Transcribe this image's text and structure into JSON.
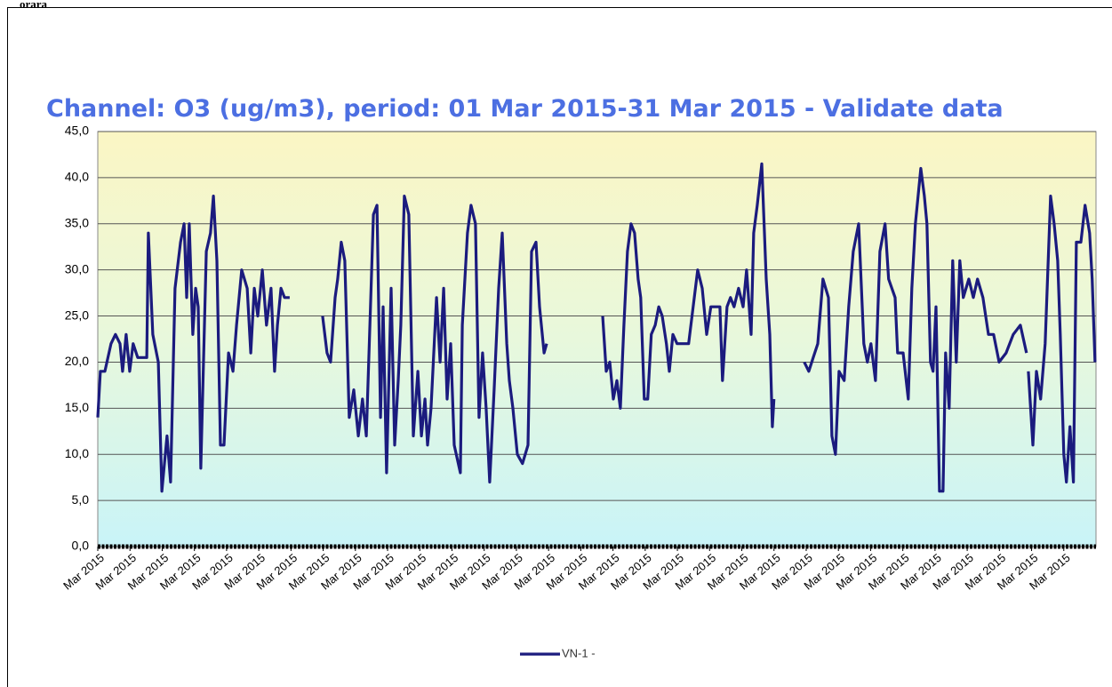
{
  "header": {
    "title": "orara"
  },
  "chart_data": {
    "type": "line",
    "title": "Channel: O3 (ug/m3), period: 01 Mar 2015-31 Mar 2015 - Validate data",
    "x": [
      0,
      0.08,
      0.22,
      0.41,
      0.55,
      0.69,
      0.77,
      0.88,
      0.99,
      1.1,
      1.24,
      1.52,
      1.57,
      1.71,
      1.88,
      1.99,
      2.15,
      2.26,
      2.4,
      2.57,
      2.68,
      2.76,
      2.84,
      2.95,
      3.04,
      3.12,
      3.2,
      3.37,
      3.5,
      3.59,
      3.7,
      3.81,
      3.92,
      4.06,
      4.2,
      4.31,
      4.47,
      4.64,
      4.75,
      4.86,
      4.97,
      5.11,
      5.24,
      5.38,
      5.49,
      5.58,
      5.69,
      5.8,
      5.96,
      6.5,
      6.98,
      7.12,
      7.23,
      7.37,
      7.45,
      7.56,
      7.67,
      7.81,
      7.95,
      8.09,
      8.22,
      8.34,
      8.47,
      8.56,
      8.67,
      8.78,
      8.86,
      8.97,
      9.11,
      9.22,
      9.33,
      9.41,
      9.52,
      9.66,
      9.8,
      9.94,
      10.05,
      10.16,
      10.24,
      10.35,
      10.52,
      10.63,
      10.74,
      10.85,
      10.96,
      11.07,
      11.26,
      11.32,
      11.48,
      11.59,
      11.73,
      11.84,
      11.95,
      12.06,
      12.17,
      12.31,
      12.45,
      12.56,
      12.7,
      12.78,
      12.89,
      13.03,
      13.19,
      13.36,
      13.47,
      13.61,
      13.72,
      13.86,
      13.94,
      15,
      15.68,
      15.79,
      15.9,
      16.01,
      16.12,
      16.23,
      16.34,
      16.45,
      16.56,
      16.67,
      16.78,
      16.86,
      16.97,
      17.08,
      17.19,
      17.31,
      17.42,
      17.53,
      17.66,
      17.75,
      17.86,
      17.99,
      18.35,
      18.49,
      18.63,
      18.77,
      18.91,
      19.04,
      19.32,
      19.4,
      19.54,
      19.65,
      19.76,
      19.9,
      20.04,
      20.15,
      20.29,
      20.37,
      20.48,
      20.62,
      20.76,
      20.87,
      20.95,
      21.0,
      21.8,
      21.94,
      22.08,
      22.22,
      22.36,
      22.52,
      22.69,
      22.8,
      22.91,
      23.02,
      23.18,
      23.32,
      23.46,
      23.63,
      23.79,
      23.9,
      24.01,
      24.15,
      24.29,
      24.45,
      24.56,
      24.76,
      24.84,
      25.01,
      25.17,
      25.28,
      25.39,
      25.56,
      25.67,
      25.75,
      25.86,
      25.94,
      26.03,
      26.14,
      26.25,
      26.33,
      26.44,
      26.55,
      26.66,
      26.77,
      26.88,
      27.05,
      27.19,
      27.32,
      27.49,
      27.66,
      27.82,
      27.99,
      28.21,
      28.43,
      28.65,
      28.84,
      28.87,
      28.9,
      29.04,
      29.15,
      29.28,
      29.42,
      29.59,
      29.7,
      29.81,
      29.89,
      30.0,
      30.08,
      30.19,
      30.3,
      30.39,
      30.53,
      30.66,
      30.8,
      30.88,
      30.97
    ],
    "series": [
      {
        "name": "VN-1 -",
        "color": "#1b1b7e",
        "values": [
          14,
          19,
          19,
          22,
          23,
          22,
          19,
          23,
          19,
          22,
          20.5,
          20.5,
          34,
          23,
          20,
          6,
          12,
          7,
          28,
          33,
          35,
          27,
          35,
          23,
          28,
          26,
          8.5,
          32,
          34,
          38,
          31,
          11,
          11,
          21,
          19,
          24,
          30,
          28,
          21,
          28,
          25,
          30,
          24,
          28,
          19,
          24,
          28,
          27,
          27,
          null,
          25,
          21,
          20,
          27,
          29,
          33,
          31,
          14,
          17,
          12,
          16,
          12,
          26,
          36,
          37,
          14,
          26,
          8,
          28,
          11,
          18,
          24,
          38,
          36,
          12,
          19,
          12,
          16,
          11,
          15,
          27,
          20,
          28,
          16,
          22,
          11,
          8,
          24,
          34,
          37,
          35,
          14,
          21,
          15,
          7,
          17,
          28,
          34,
          22,
          18,
          15,
          10,
          9,
          11,
          32,
          33,
          26,
          21,
          22,
          null,
          25,
          19,
          20,
          16,
          18,
          15,
          24,
          32,
          35,
          34,
          29,
          27,
          16,
          16,
          23,
          24,
          26,
          25,
          22,
          19,
          23,
          22,
          22,
          26,
          30,
          28,
          23,
          26,
          26,
          18,
          26,
          27,
          26,
          28,
          26,
          30,
          23,
          34,
          37,
          41.5,
          29,
          23,
          13,
          16,
          null,
          20,
          19,
          20.5,
          22,
          29,
          27,
          12,
          10,
          19,
          18,
          26,
          32,
          35,
          22,
          20,
          22,
          18,
          32,
          35,
          29,
          27,
          21,
          21,
          16,
          28,
          35,
          41,
          38,
          35,
          20,
          19,
          26,
          6,
          6,
          21,
          15,
          31,
          20,
          31,
          27,
          29,
          27,
          29,
          27,
          23,
          23,
          20,
          21,
          23,
          24,
          21,
          null,
          19,
          11,
          19,
          16,
          22,
          38,
          35,
          31,
          23,
          10,
          7,
          13,
          7,
          33,
          33,
          37,
          34,
          29,
          20
        ]
      }
    ],
    "xlim": [
      0,
      31
    ],
    "xticks": [
      {
        "value": 0,
        "label": "Mar 2015"
      },
      {
        "value": 1,
        "label": "Mar 2015"
      },
      {
        "value": 2,
        "label": "Mar 2015"
      },
      {
        "value": 3,
        "label": "Mar 2015"
      },
      {
        "value": 4,
        "label": "Mar 2015"
      },
      {
        "value": 5,
        "label": "Mar 2015"
      },
      {
        "value": 6,
        "label": "Mar 2015"
      },
      {
        "value": 7,
        "label": "Mar 2015"
      },
      {
        "value": 8,
        "label": "Mar 2015"
      },
      {
        "value": 9,
        "label": "Mar 2015"
      },
      {
        "value": 10,
        "label": "Mar 2015"
      },
      {
        "value": 11,
        "label": "Mar 2015"
      },
      {
        "value": 12,
        "label": "Mar 2015"
      },
      {
        "value": 13,
        "label": "Mar 2015"
      },
      {
        "value": 14,
        "label": "Mar 2015"
      },
      {
        "value": 15,
        "label": "Mar 2015"
      },
      {
        "value": 16,
        "label": "Mar 2015"
      },
      {
        "value": 17,
        "label": "Mar 2015"
      },
      {
        "value": 18,
        "label": "Mar 2015"
      },
      {
        "value": 19,
        "label": "Mar 2015"
      },
      {
        "value": 20,
        "label": "Mar 2015"
      },
      {
        "value": 21,
        "label": "Mar 2015"
      },
      {
        "value": 22,
        "label": "Mar 2015"
      },
      {
        "value": 23,
        "label": "Mar 2015"
      },
      {
        "value": 24,
        "label": "Mar 2015"
      },
      {
        "value": 25,
        "label": "Mar 2015"
      },
      {
        "value": 26,
        "label": "Mar 2015"
      },
      {
        "value": 27,
        "label": "Mar 2015"
      },
      {
        "value": 28,
        "label": "Mar 2015"
      },
      {
        "value": 29,
        "label": "Mar 2015"
      },
      {
        "value": 30,
        "label": "Mar 2015"
      }
    ],
    "ylim": [
      0,
      45
    ],
    "yticks": [
      {
        "value": 0,
        "label": "0,0"
      },
      {
        "value": 5,
        "label": "5,0"
      },
      {
        "value": 10,
        "label": "10,0"
      },
      {
        "value": 15,
        "label": "15,0"
      },
      {
        "value": 20,
        "label": "20,0"
      },
      {
        "value": 25,
        "label": "25,0"
      },
      {
        "value": 30,
        "label": "30,0"
      },
      {
        "value": 35,
        "label": "35,0"
      },
      {
        "value": 40,
        "label": "40,0"
      },
      {
        "value": 45,
        "label": "45,0"
      }
    ],
    "grid": true,
    "legend": "bottom"
  }
}
